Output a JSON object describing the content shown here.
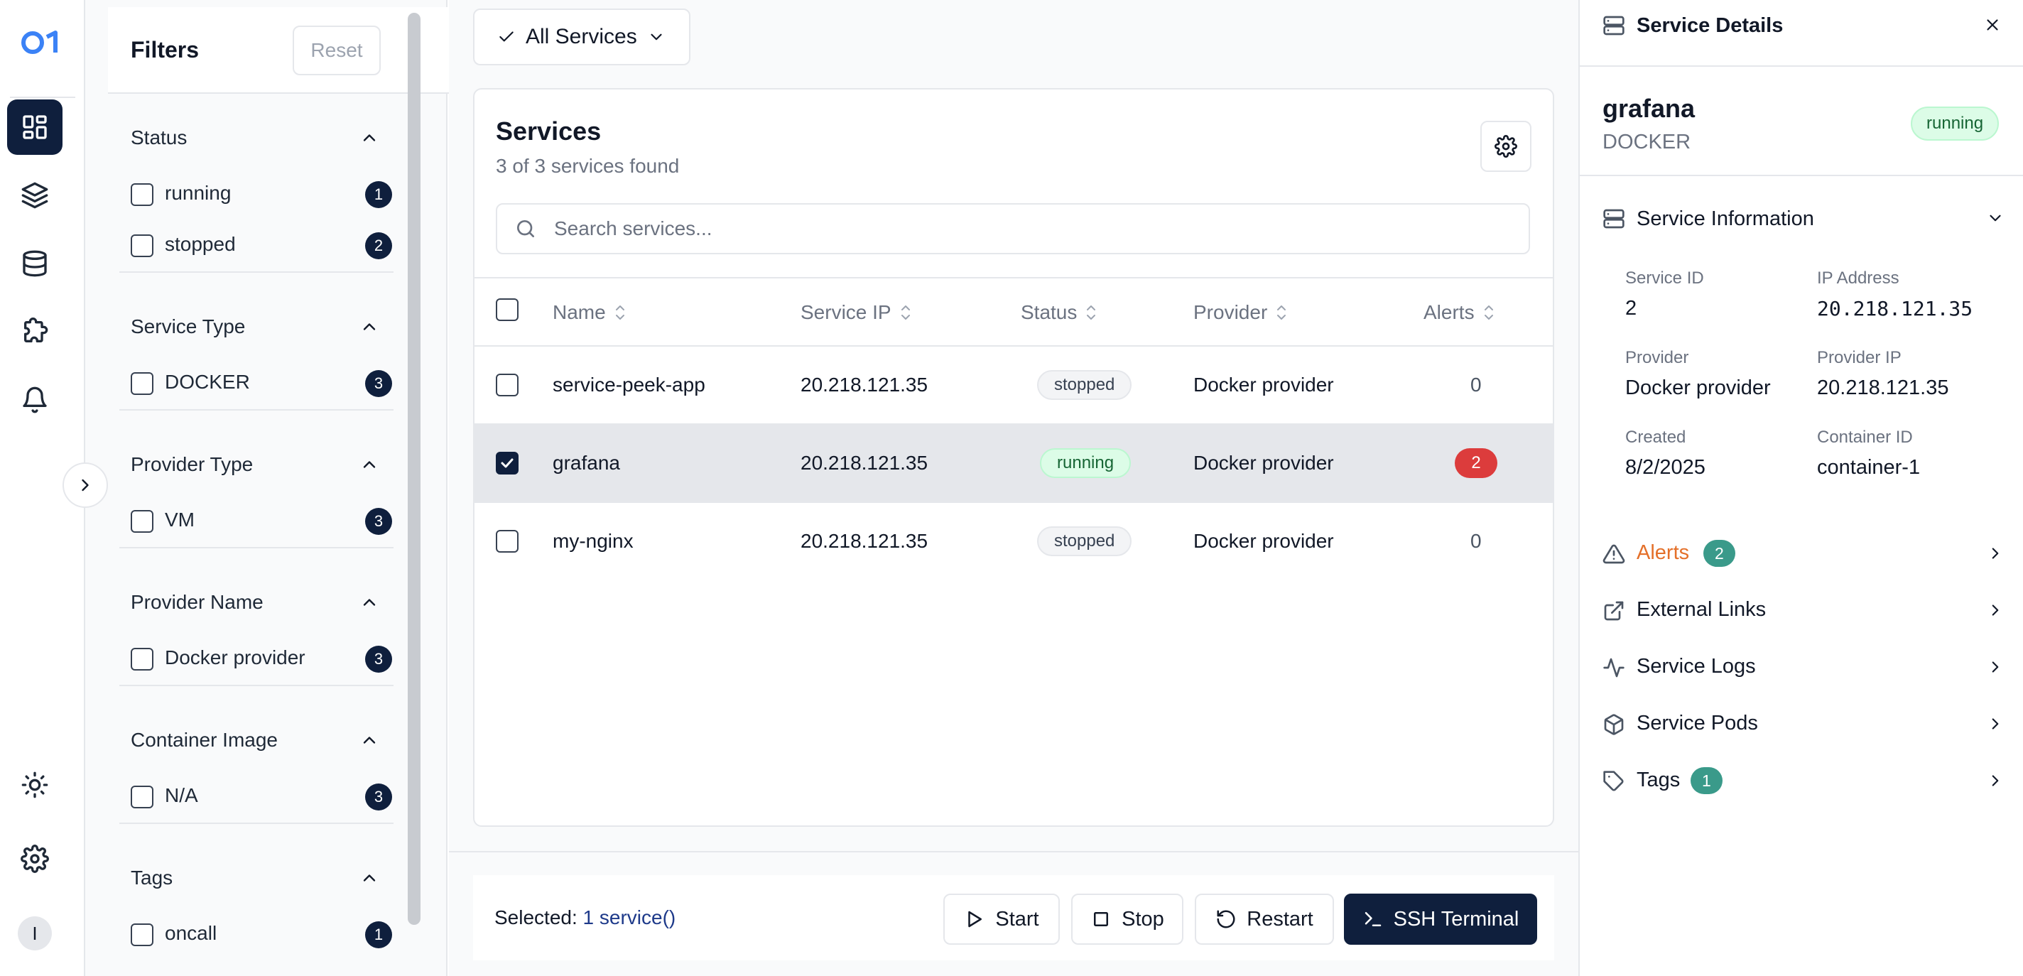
{
  "nav": {
    "avatar_initial": "I",
    "items": [
      "dashboard",
      "layers",
      "database",
      "plugins",
      "notifications"
    ],
    "bottom": [
      "theme",
      "settings"
    ]
  },
  "filters": {
    "title": "Filters",
    "reset_label": "Reset",
    "sections": [
      {
        "title": "Status",
        "options": [
          {
            "label": "running",
            "count": "1"
          },
          {
            "label": "stopped",
            "count": "2"
          }
        ]
      },
      {
        "title": "Service Type",
        "options": [
          {
            "label": "DOCKER",
            "count": "3"
          }
        ]
      },
      {
        "title": "Provider Type",
        "options": [
          {
            "label": "VM",
            "count": "3"
          }
        ]
      },
      {
        "title": "Provider Name",
        "options": [
          {
            "label": "Docker provider",
            "count": "3"
          }
        ]
      },
      {
        "title": "Container Image",
        "options": [
          {
            "label": "N/A",
            "count": "3"
          }
        ]
      },
      {
        "title": "Tags",
        "options": [
          {
            "label": "oncall",
            "count": "1"
          }
        ]
      }
    ]
  },
  "toolbar": {
    "all_services_label": "All Services"
  },
  "services": {
    "title": "Services",
    "subtitle": "3 of 3 services found",
    "search_placeholder": "Search services...",
    "columns": [
      "Name",
      "Service IP",
      "Status",
      "Provider",
      "Alerts"
    ],
    "rows": [
      {
        "name": "service-peek-app",
        "ip": "20.218.121.35",
        "status": "stopped",
        "provider": "Docker provider",
        "alerts": "0",
        "selected": false
      },
      {
        "name": "grafana",
        "ip": "20.218.121.35",
        "status": "running",
        "provider": "Docker provider",
        "alerts": "2",
        "selected": true
      },
      {
        "name": "my-nginx",
        "ip": "20.218.121.35",
        "status": "stopped",
        "provider": "Docker provider",
        "alerts": "0",
        "selected": false
      }
    ]
  },
  "bottom_bar": {
    "selected_prefix": "Selected: ",
    "selected_link": "1 service()",
    "start_label": "Start",
    "stop_label": "Stop",
    "restart_label": "Restart",
    "ssh_label": "SSH Terminal"
  },
  "details": {
    "header_title": "Service Details",
    "name": "grafana",
    "type": "DOCKER",
    "status": "running",
    "info_section_title": "Service Information",
    "info": {
      "service_id_label": "Service ID",
      "service_id": "2",
      "ip_label": "IP Address",
      "ip": "20.218.121.35",
      "provider_label": "Provider",
      "provider": "Docker provider",
      "provider_ip_label": "Provider IP",
      "provider_ip": "20.218.121.35",
      "created_label": "Created",
      "created": "8/2/2025",
      "container_id_label": "Container ID",
      "container_id": "container-1"
    },
    "sections": [
      {
        "title": "Alerts",
        "badge": "2"
      },
      {
        "title": "External Links"
      },
      {
        "title": "Service Logs"
      },
      {
        "title": "Service Pods"
      },
      {
        "title": "Tags",
        "badge": "1"
      }
    ]
  },
  "colors": {
    "nav_active": "#0f1f3d",
    "primary": "#0f1f3d",
    "running_bg": "#dcfce7",
    "alert_red": "#dc3c3c",
    "alerts_orange": "#e4702a",
    "tag_teal": "#3a9a8a",
    "logo_blue": "#3b82f6"
  }
}
